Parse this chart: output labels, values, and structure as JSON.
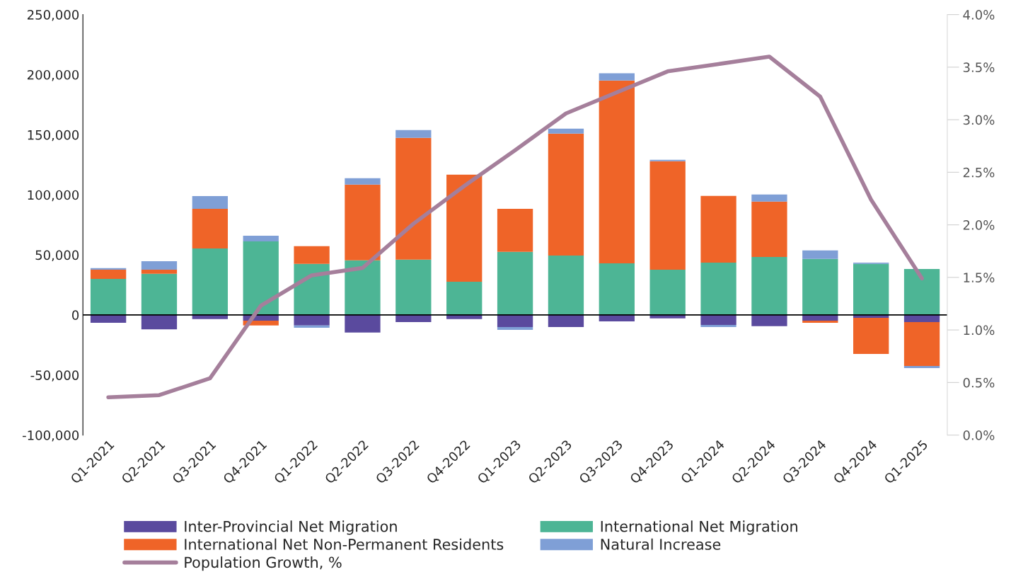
{
  "chart_data": {
    "type": "bar",
    "stacked": true,
    "categories": [
      "Q1-2021",
      "Q2-2021",
      "Q3-2021",
      "Q4-2021",
      "Q1-2022",
      "Q2-2022",
      "Q3-2022",
      "Q4-2022",
      "Q1-2023",
      "Q2-2023",
      "Q3-2023",
      "Q4-2023",
      "Q1-2024",
      "Q2-2024",
      "Q3-2024",
      "Q4-2024",
      "Q1-2025"
    ],
    "series": [
      {
        "name": "Inter-Provincial Net Migration",
        "color": "#5a4a9e",
        "values": [
          -6500,
          -12000,
          -3500,
          -4700,
          -8800,
          -14700,
          -5900,
          -3500,
          -10000,
          -10000,
          -5300,
          -2900,
          -8300,
          -9400,
          -4700,
          -2400,
          -5900
        ]
      },
      {
        "name": "International Net Migration",
        "color": "#4db595",
        "values": [
          30000,
          34200,
          55400,
          61300,
          42500,
          45400,
          46000,
          27700,
          52500,
          49500,
          43000,
          37700,
          43600,
          48300,
          46600,
          42500,
          38300
        ]
      },
      {
        "name": "International Net Non-Permanent Residents",
        "color": "#ef6428",
        "values": [
          7700,
          3500,
          33000,
          -4100,
          14700,
          63100,
          101400,
          89000,
          35900,
          101400,
          152200,
          90300,
          55500,
          46000,
          -1800,
          -30000,
          -36600
        ]
      },
      {
        "name": "Natural Increase",
        "color": "#7f9fd6",
        "values": [
          1300,
          7100,
          10600,
          4700,
          -1800,
          5300,
          6500,
          null,
          -2400,
          4200,
          5900,
          1200,
          -1700,
          5900,
          7100,
          1100,
          -1700
        ]
      },
      {
        "name": "Population Growth, %",
        "type": "line",
        "axis": "y2",
        "color": "#a57f9b",
        "marker": "none",
        "line_style": "solid",
        "values": [
          0.36,
          0.38,
          0.54,
          1.23,
          1.52,
          1.59,
          2.01,
          2.37,
          2.71,
          3.06,
          3.26,
          3.46,
          3.53,
          3.6,
          3.22,
          2.24,
          1.49
        ]
      }
    ],
    "ylim": [
      -100000,
      250000
    ],
    "yticks": [
      {
        "value": -100000,
        "label": "-100,000"
      },
      {
        "value": -50000,
        "label": "-50,000"
      },
      0,
      {
        "value": 50000,
        "label": "50,000"
      },
      {
        "value": 100000,
        "label": "100,000"
      },
      {
        "value": 150000,
        "label": "150,000"
      },
      {
        "value": 200000,
        "label": "200,000"
      },
      {
        "value": 250000,
        "label": "250,000"
      }
    ],
    "y2lim": [
      0,
      4.0
    ],
    "y2ticks": [
      {
        "value": 0,
        "label": "0.0%"
      },
      {
        "value": 0.5,
        "label": "0.5%"
      },
      {
        "value": 1.0,
        "label": "1.0%"
      },
      {
        "value": 1.5,
        "label": "1.5%"
      },
      {
        "value": 2.0,
        "label": "2.0%"
      },
      {
        "value": 2.5,
        "label": "2.5%"
      },
      {
        "value": 3.0,
        "label": "3.0%"
      },
      {
        "value": 3.5,
        "label": "3.5%"
      },
      {
        "value": 4.0,
        "label": "4.0%"
      }
    ],
    "ref_lines": [
      {
        "axis": "y",
        "value": 0,
        "color": "#000000"
      }
    ],
    "grid": false,
    "legend": "bottom"
  }
}
